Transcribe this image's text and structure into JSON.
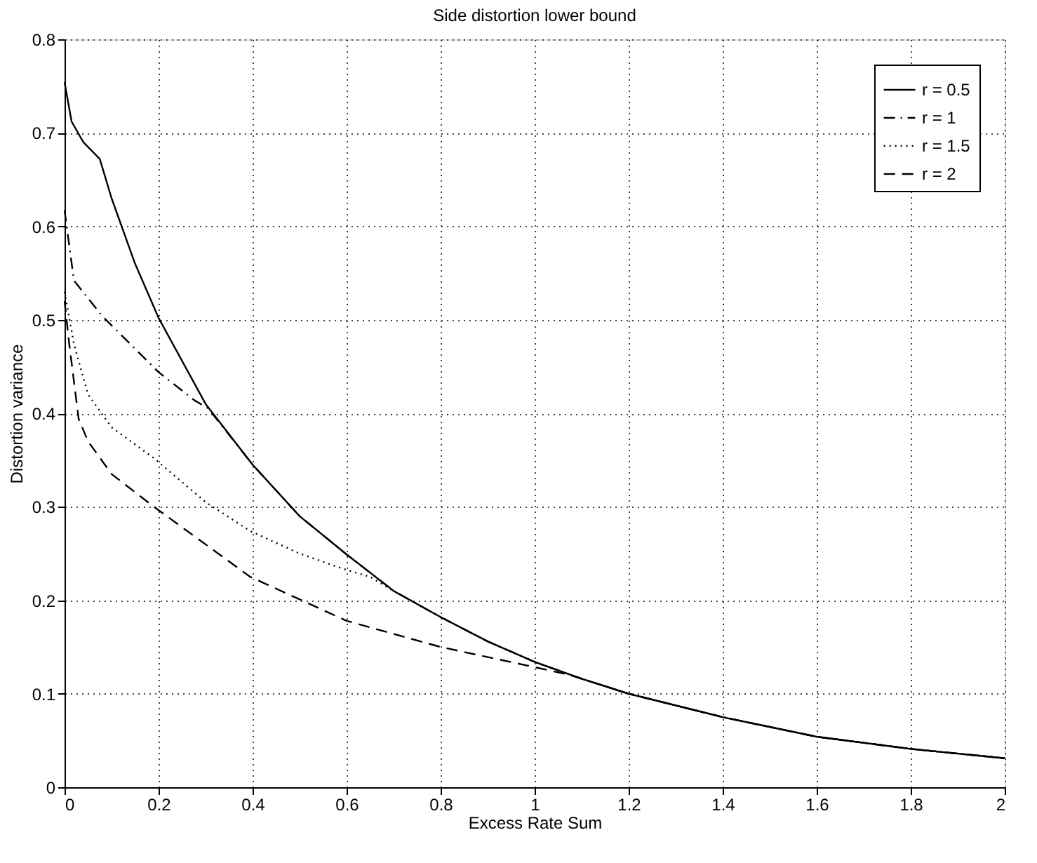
{
  "chart_data": {
    "type": "line",
    "title": "Side distortion lower bound",
    "xlabel": "Excess Rate Sum",
    "ylabel": "Distortion variance",
    "xlim": [
      0,
      2
    ],
    "ylim": [
      0,
      0.8
    ],
    "xticks": [
      0,
      0.2,
      0.4,
      0.6,
      0.8,
      1,
      1.2,
      1.4,
      1.6,
      1.8,
      2
    ],
    "yticks": [
      0,
      0.1,
      0.2,
      0.3,
      0.4,
      0.5,
      0.6,
      0.7,
      0.8
    ],
    "grid": true,
    "legend": "top right",
    "marker": "none",
    "series": [
      {
        "name": "r = 0.5",
        "color": "#000000",
        "line_style": "solid",
        "x": [
          0,
          0.015,
          0.04,
          0.075,
          0.1,
          0.15,
          0.2,
          0.3,
          0.4,
          0.5,
          0.6,
          0.7,
          0.8,
          0.9,
          1.0,
          1.1,
          1.2,
          1.4,
          1.6,
          1.8,
          2.0
        ],
        "values": [
          0.754,
          0.712,
          0.69,
          0.672,
          0.63,
          0.56,
          0.502,
          0.41,
          0.345,
          0.29,
          0.249,
          0.21,
          0.182,
          0.156,
          0.134,
          0.116,
          0.1,
          0.075,
          0.054,
          0.041,
          0.031
        ]
      },
      {
        "name": "r = 1",
        "color": "#000000",
        "line_style": "dashdot",
        "x": [
          0,
          0.02,
          0.08,
          0.2,
          0.276,
          0.306,
          0.4,
          0.5,
          0.6,
          0.7,
          0.8,
          0.9,
          1.0,
          1.1,
          1.2,
          1.4,
          1.6,
          1.8,
          2.0
        ],
        "values": [
          0.617,
          0.542,
          0.504,
          0.444,
          0.414,
          0.405,
          0.345,
          0.29,
          0.249,
          0.21,
          0.182,
          0.156,
          0.134,
          0.116,
          0.1,
          0.075,
          0.054,
          0.041,
          0.031
        ]
      },
      {
        "name": "r = 1.5",
        "color": "#000000",
        "line_style": "dotted",
        "x": [
          0,
          0.02,
          0.05,
          0.1,
          0.19,
          0.3,
          0.395,
          0.5,
          0.59,
          0.65,
          0.7,
          0.8,
          0.9,
          1.0,
          1.1,
          1.2,
          1.4,
          1.6,
          1.8,
          2.0
        ],
        "values": [
          0.53,
          0.474,
          0.42,
          0.385,
          0.352,
          0.305,
          0.274,
          0.25,
          0.234,
          0.225,
          0.21,
          0.182,
          0.156,
          0.134,
          0.116,
          0.1,
          0.075,
          0.054,
          0.041,
          0.031
        ]
      },
      {
        "name": "r = 2",
        "color": "#000000",
        "line_style": "dashed",
        "x": [
          0,
          0.01,
          0.03,
          0.05,
          0.1,
          0.19,
          0.395,
          0.6,
          0.8,
          0.995,
          1.075,
          1.2,
          1.4,
          1.6,
          1.8,
          2.0
        ],
        "values": [
          0.52,
          0.474,
          0.394,
          0.37,
          0.335,
          0.3,
          0.225,
          0.178,
          0.15,
          0.129,
          0.12,
          0.1,
          0.075,
          0.054,
          0.041,
          0.031
        ]
      }
    ]
  }
}
